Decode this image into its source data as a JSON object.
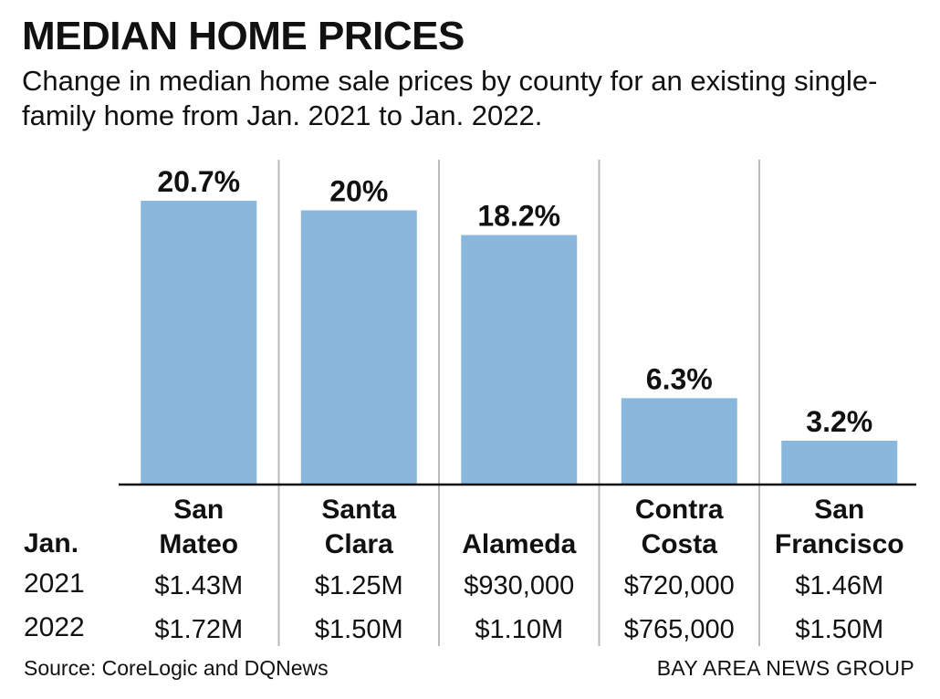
{
  "chart_data": {
    "type": "bar",
    "title": "MEDIAN HOME PRICES",
    "subtitle": "Change in median home sale prices by county for an existing single-family home from Jan. 2021 to Jan. 2022.",
    "categories": [
      [
        "San",
        "Mateo"
      ],
      [
        "Santa",
        "Clara"
      ],
      [
        "",
        "Alameda"
      ],
      [
        "Contra",
        "Costa"
      ],
      [
        "San",
        "Francisco"
      ]
    ],
    "values": [
      20.7,
      20,
      18.2,
      6.3,
      3.2
    ],
    "value_labels": [
      "20.7%",
      "20%",
      "18.2%",
      "6.3%",
      "3.2%"
    ],
    "ylim": [
      0,
      21
    ],
    "bar_color": "#8ab8dc",
    "table": {
      "header_label": "Jan.",
      "rows": [
        {
          "label": "2021",
          "values": [
            "$1.43M",
            "$1.25M",
            "$930,000",
            "$720,000",
            "$1.46M"
          ]
        },
        {
          "label": "2022",
          "values": [
            "$1.72M",
            "$1.50M",
            "$1.10M",
            "$765,000",
            "$1.50M"
          ]
        }
      ]
    },
    "source": "Source: CoreLogic and DQNews",
    "credit": "BAY AREA NEWS GROUP"
  }
}
